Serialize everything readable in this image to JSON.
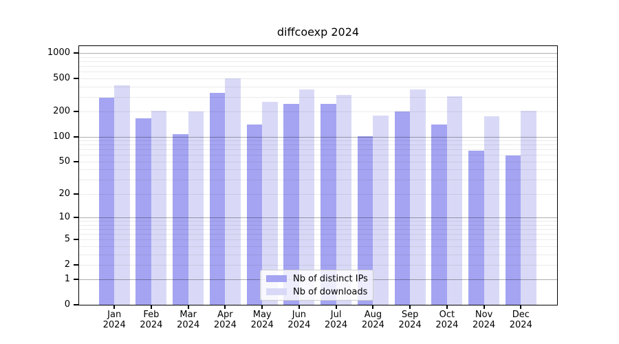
{
  "chart_data": {
    "type": "bar",
    "title": "diffcoexp 2024",
    "categories": [
      "Jan 2024",
      "Feb 2024",
      "Mar 2024",
      "Apr 2024",
      "May 2024",
      "Jun 2024",
      "Jul 2024",
      "Aug 2024",
      "Sep 2024",
      "Oct 2024",
      "Nov 2024",
      "Dec 2024"
    ],
    "series": [
      {
        "name": "Nb of distinct IPs",
        "color": "#a4a4f2",
        "values": [
          295,
          165,
          107,
          337,
          139,
          248,
          249,
          101,
          200,
          141,
          68,
          59
        ]
      },
      {
        "name": "Nb of downloads",
        "color": "#d9d9f7",
        "values": [
          410,
          205,
          203,
          500,
          261,
          371,
          317,
          179,
          371,
          307,
          176,
          204
        ]
      }
    ],
    "yscale": "log10(value+1)",
    "ylim": [
      0,
      1262
    ],
    "yticks": [
      0,
      1,
      2,
      5,
      10,
      20,
      50,
      100,
      200,
      500,
      1000
    ],
    "gridlines_major": [
      1,
      10,
      100,
      1000
    ],
    "gridlines_minor": [
      2,
      3,
      4,
      5,
      6,
      7,
      8,
      9,
      20,
      30,
      40,
      50,
      60,
      70,
      80,
      90,
      200,
      300,
      400,
      500,
      600,
      700,
      800,
      900
    ],
    "grid": true,
    "legend_position": "lower center",
    "xlabel": "",
    "ylabel": ""
  },
  "colors": {
    "background": "#ffffff",
    "axis": "#000000",
    "grid_major": "rgba(0,0,0,0.32)",
    "grid_minor": "rgba(0,0,0,0.08)",
    "legend_border": "#cccccc"
  }
}
